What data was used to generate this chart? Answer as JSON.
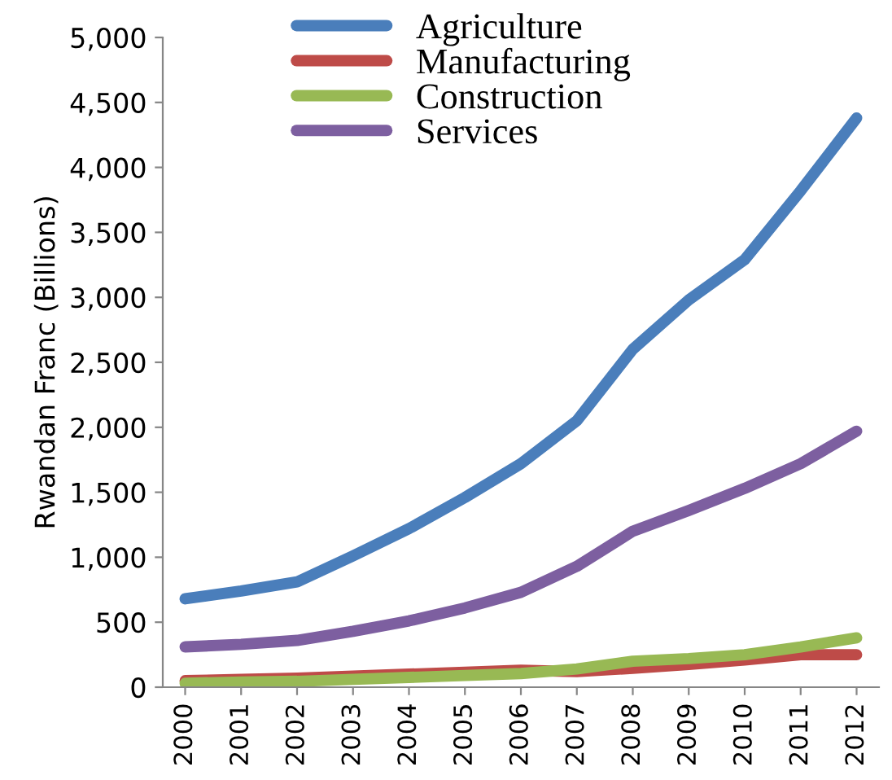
{
  "chart_data": {
    "type": "line",
    "ylabel": "Rwandan Franc (Billions)",
    "categories": [
      "2000",
      "2001",
      "2002",
      "2003",
      "2004",
      "2005",
      "2006",
      "2007",
      "2008",
      "2009",
      "2010",
      "2011",
      "2012"
    ],
    "series": [
      {
        "name": "Agriculture",
        "color": "#4a7ebb",
        "values": [
          680,
          740,
          810,
          1010,
          1220,
          1460,
          1720,
          2050,
          2600,
          2980,
          3290,
          3820,
          4380
        ]
      },
      {
        "name": "Manufacturing",
        "color": "#be4b48",
        "values": [
          50,
          60,
          70,
          85,
          100,
          115,
          130,
          120,
          145,
          175,
          210,
          250,
          250
        ]
      },
      {
        "name": "Construction",
        "color": "#98b954",
        "values": [
          30,
          40,
          45,
          60,
          75,
          90,
          105,
          140,
          200,
          220,
          250,
          310,
          380
        ]
      },
      {
        "name": "Services",
        "color": "#7d5fa0",
        "values": [
          310,
          330,
          360,
          430,
          510,
          610,
          730,
          930,
          1200,
          1360,
          1530,
          1720,
          1970
        ]
      }
    ],
    "ylim": [
      0,
      5000
    ],
    "yticks": [
      {
        "value": 0,
        "label": "0"
      },
      {
        "value": 500,
        "label": "500"
      },
      {
        "value": 1000,
        "label": "1,000"
      },
      {
        "value": 1500,
        "label": "1,500"
      },
      {
        "value": 2000,
        "label": "2,000"
      },
      {
        "value": 2500,
        "label": "2,500"
      },
      {
        "value": 3000,
        "label": "3,000"
      },
      {
        "value": 3500,
        "label": "3,500"
      },
      {
        "value": 4000,
        "label": "4,000"
      },
      {
        "value": 4500,
        "label": "4,500"
      },
      {
        "value": 5000,
        "label": "5,000"
      }
    ],
    "grid": false,
    "legend": "top",
    "marker": "none",
    "line_style": "solid"
  }
}
